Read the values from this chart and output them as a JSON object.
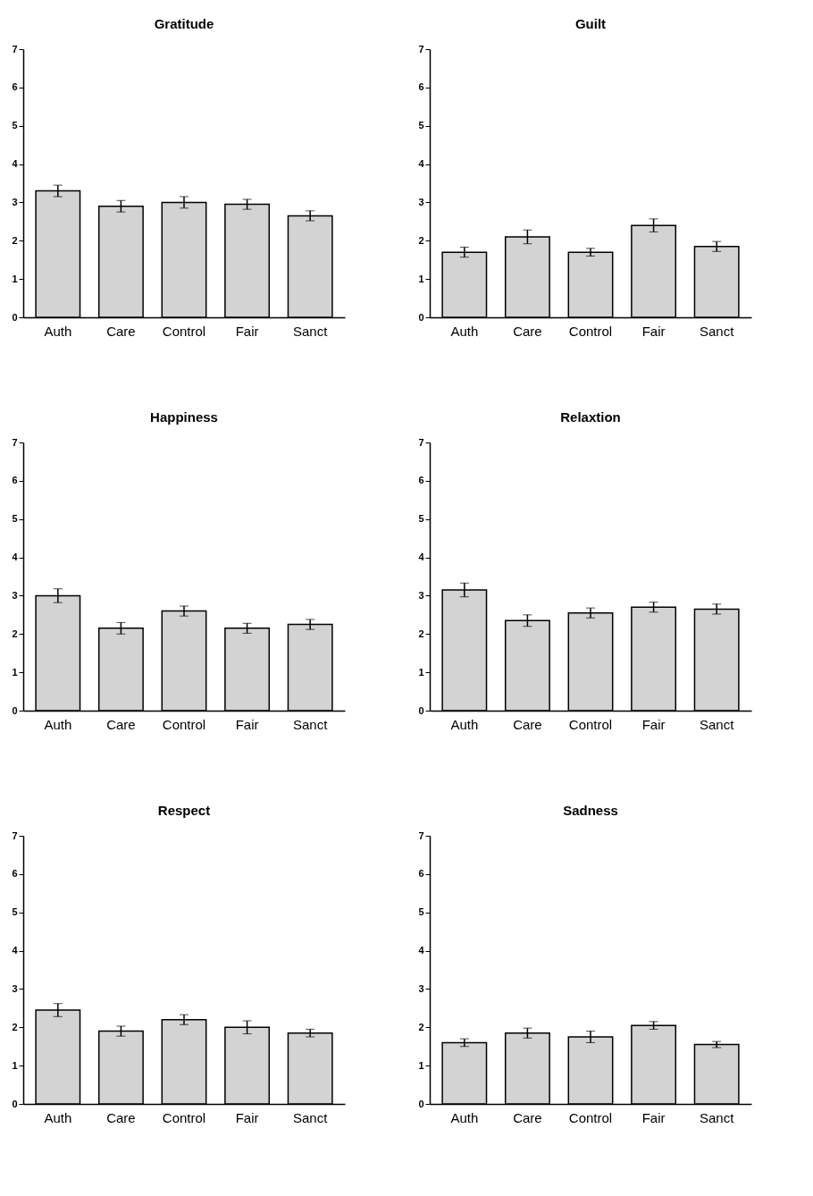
{
  "chart_data": [
    {
      "type": "bar",
      "title": "Gratitude",
      "categories": [
        "Auth",
        "Care",
        "Control",
        "Fair",
        "Sanct"
      ],
      "values": [
        3.3,
        2.9,
        3.0,
        2.95,
        2.65
      ],
      "errors": [
        0.15,
        0.15,
        0.15,
        0.13,
        0.13
      ],
      "color": "#d3d3d3",
      "ylim": [
        0,
        7
      ],
      "yticks": [
        0,
        1,
        2,
        3,
        4,
        5,
        6,
        7
      ]
    },
    {
      "type": "bar",
      "title": "Guilt",
      "categories": [
        "Auth",
        "Care",
        "Control",
        "Fair",
        "Sanct"
      ],
      "values": [
        1.7,
        2.1,
        1.7,
        2.4,
        1.85
      ],
      "errors": [
        0.13,
        0.18,
        0.1,
        0.17,
        0.13
      ],
      "color": "#d3d3d3",
      "ylim": [
        0,
        7
      ],
      "yticks": [
        0,
        1,
        2,
        3,
        4,
        5,
        6,
        7
      ]
    },
    {
      "type": "bar",
      "title": "Happiness",
      "categories": [
        "Auth",
        "Care",
        "Control",
        "Fair",
        "Sanct"
      ],
      "values": [
        3.0,
        2.15,
        2.6,
        2.15,
        2.25
      ],
      "errors": [
        0.18,
        0.15,
        0.13,
        0.13,
        0.13
      ],
      "color": "#d3d3d3",
      "ylim": [
        0,
        7
      ],
      "yticks": [
        0,
        1,
        2,
        3,
        4,
        5,
        6,
        7
      ]
    },
    {
      "type": "bar",
      "title": "Relaxtion",
      "categories": [
        "Auth",
        "Care",
        "Control",
        "Fair",
        "Sanct"
      ],
      "values": [
        3.15,
        2.35,
        2.55,
        2.7,
        2.65
      ],
      "errors": [
        0.18,
        0.15,
        0.13,
        0.13,
        0.13
      ],
      "color": "#d3d3d3",
      "ylim": [
        0,
        7
      ],
      "yticks": [
        0,
        1,
        2,
        3,
        4,
        5,
        6,
        7
      ]
    },
    {
      "type": "bar",
      "title": "Respect",
      "categories": [
        "Auth",
        "Care",
        "Control",
        "Fair",
        "Sanct"
      ],
      "values": [
        2.45,
        1.9,
        2.2,
        2.0,
        1.85
      ],
      "errors": [
        0.17,
        0.13,
        0.13,
        0.17,
        0.1
      ],
      "color": "#d3d3d3",
      "ylim": [
        0,
        7
      ],
      "yticks": [
        0,
        1,
        2,
        3,
        4,
        5,
        6,
        7
      ]
    },
    {
      "type": "bar",
      "title": "Sadness",
      "categories": [
        "Auth",
        "Care",
        "Control",
        "Fair",
        "Sanct"
      ],
      "values": [
        1.6,
        1.85,
        1.75,
        2.05,
        1.55
      ],
      "errors": [
        0.1,
        0.13,
        0.15,
        0.1,
        0.08
      ],
      "color": "#d3d3d3",
      "ylim": [
        0,
        7
      ],
      "yticks": [
        0,
        1,
        2,
        3,
        4,
        5,
        6,
        7
      ]
    }
  ]
}
